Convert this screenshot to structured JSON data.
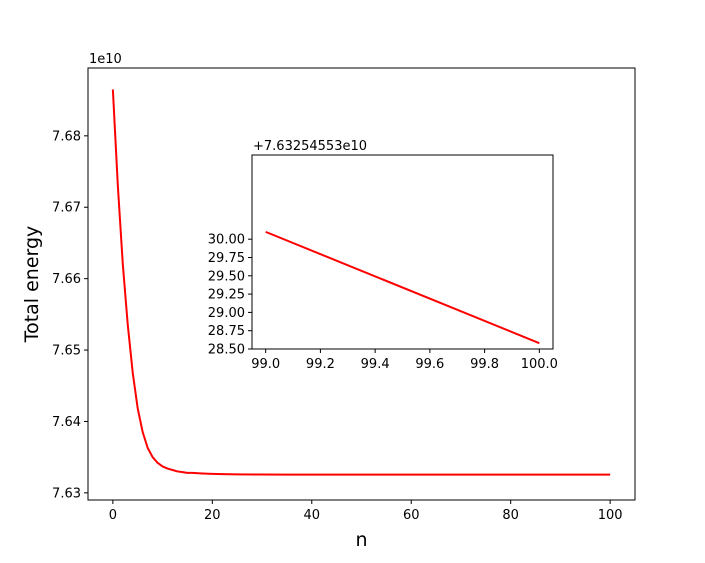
{
  "chart_data": [
    {
      "type": "line",
      "title": "",
      "xlabel": "n",
      "ylabel": "Total energy",
      "y_offset_text": "1e10",
      "xlim": [
        -5,
        105
      ],
      "ylim": [
        7.629,
        7.6895
      ],
      "xticks": [
        0,
        20,
        40,
        60,
        80,
        100
      ],
      "xtick_labels": [
        "0",
        "20",
        "40",
        "60",
        "80",
        "100"
      ],
      "yticks": [
        7.63,
        7.64,
        7.65,
        7.66,
        7.67,
        7.68
      ],
      "ytick_labels": [
        "7.63",
        "7.64",
        "7.65",
        "7.66",
        "7.67",
        "7.68"
      ],
      "grid": false,
      "color": "#ff0000",
      "series": [
        {
          "x": [
            0,
            1,
            2,
            3,
            4,
            5,
            6,
            7,
            8,
            9,
            10,
            11,
            12,
            13,
            14,
            15,
            16,
            18,
            20,
            22,
            25,
            30,
            35,
            40,
            50,
            60,
            70,
            80,
            90,
            100
          ],
          "values": [
            7.6865,
            7.673,
            7.662,
            7.6535,
            7.6468,
            7.6418,
            7.6385,
            7.6363,
            7.635,
            7.6342,
            7.6337,
            7.6334,
            7.6332,
            7.633,
            7.6329,
            7.6328,
            7.6328,
            7.63272,
            7.63266,
            7.63262,
            7.63259,
            7.63257,
            7.63256,
            7.632556,
            7.632555,
            7.632555,
            7.632554,
            7.632554,
            7.632553,
            7.632553
          ]
        }
      ]
    },
    {
      "type": "line",
      "title": "",
      "xlabel": "",
      "ylabel": "",
      "y_offset_text": "+7.63254553e10",
      "xlim": [
        98.95,
        100.05
      ],
      "ylim": [
        28.5,
        31.15
      ],
      "xticks": [
        99.0,
        99.2,
        99.4,
        99.6,
        99.8,
        100.0
      ],
      "xtick_labels": [
        "99.0",
        "99.2",
        "99.4",
        "99.6",
        "99.8",
        "100.0"
      ],
      "yticks": [
        28.5,
        28.75,
        29.0,
        29.25,
        29.5,
        29.75,
        30.0
      ],
      "ytick_labels": [
        "28.50",
        "28.75",
        "29.00",
        "29.25",
        "29.50",
        "29.75",
        "30.00"
      ],
      "grid": false,
      "color": "#ff0000",
      "series": [
        {
          "x": [
            99.0,
            100.0
          ],
          "values": [
            30.1,
            28.58
          ]
        }
      ]
    }
  ]
}
